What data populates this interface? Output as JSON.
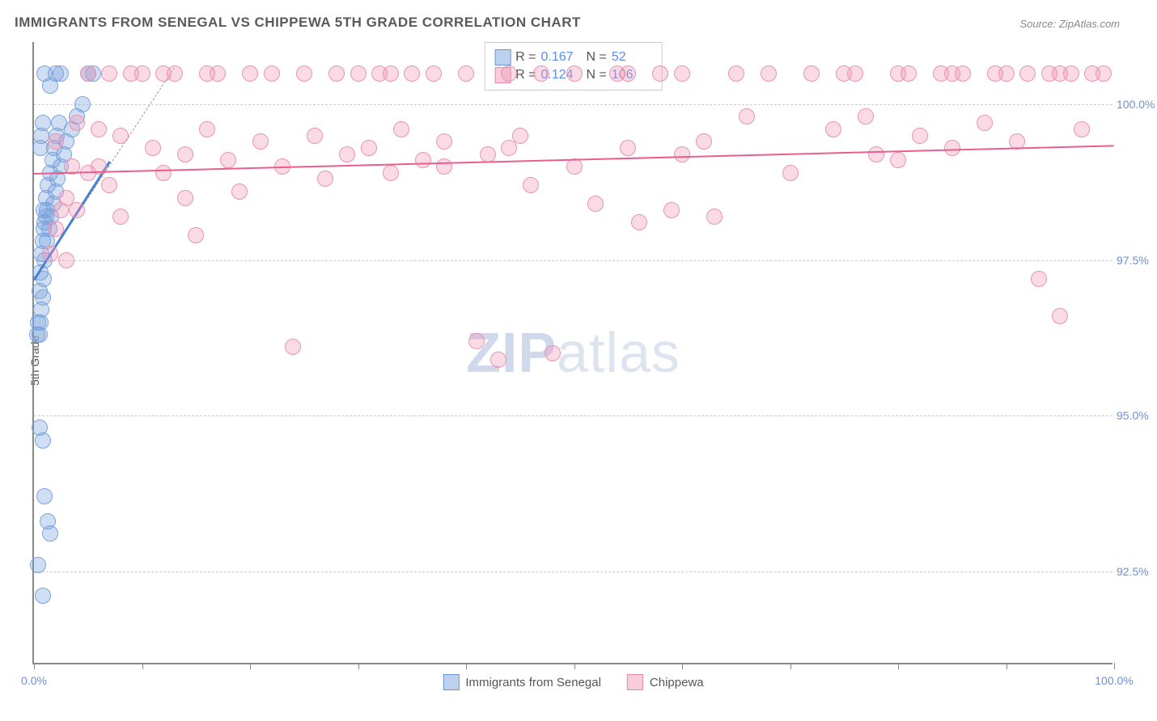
{
  "title": "IMMIGRANTS FROM SENEGAL VS CHIPPEWA 5TH GRADE CORRELATION CHART",
  "source": "Source: ZipAtlas.com",
  "ylabel": "5th Grade",
  "watermark_zip": "ZIP",
  "watermark_atlas": "atlas",
  "chart": {
    "type": "scatter",
    "background_color": "#ffffff",
    "grid_color": "#cfcfcf",
    "xlim": [
      0,
      100
    ],
    "ylim": [
      91,
      101
    ],
    "yticks": [
      92.5,
      95.0,
      97.5,
      100.0
    ],
    "ytick_labels": [
      "92.5%",
      "95.0%",
      "97.5%",
      "100.0%"
    ],
    "xtick_positions": [
      0,
      10,
      20,
      30,
      40,
      50,
      60,
      70,
      80,
      90,
      100
    ],
    "xtick_labels": {
      "0": "0.0%",
      "100": "100.0%"
    },
    "marker_radius": 10,
    "series": [
      {
        "name": "Immigrants from Senegal",
        "fill": "rgba(120,160,220,0.35)",
        "stroke": "#7aa4dd",
        "swatch_fill": "#bdd0ee",
        "swatch_border": "#6c95d6",
        "R": "0.167",
        "N": "52",
        "trend": {
          "x1": 0,
          "y1": 97.2,
          "x2": 7,
          "y2": 99.1,
          "color": "#4a7fd1",
          "width": 3
        },
        "points": [
          [
            0.3,
            96.3
          ],
          [
            0.4,
            96.5
          ],
          [
            0.5,
            97.0
          ],
          [
            0.6,
            97.3
          ],
          [
            0.7,
            97.6
          ],
          [
            0.8,
            97.8
          ],
          [
            0.9,
            98.0
          ],
          [
            1.0,
            98.1
          ],
          [
            1.1,
            98.2
          ],
          [
            1.2,
            98.3
          ],
          [
            0.5,
            96.3
          ],
          [
            0.6,
            96.5
          ],
          [
            0.7,
            96.7
          ],
          [
            0.8,
            96.9
          ],
          [
            0.9,
            97.2
          ],
          [
            1.0,
            97.5
          ],
          [
            1.2,
            97.8
          ],
          [
            1.4,
            98.0
          ],
          [
            1.6,
            98.2
          ],
          [
            1.8,
            98.4
          ],
          [
            2.0,
            98.6
          ],
          [
            2.2,
            98.8
          ],
          [
            2.5,
            99.0
          ],
          [
            2.8,
            99.2
          ],
          [
            3.0,
            99.4
          ],
          [
            3.5,
            99.6
          ],
          [
            4.0,
            99.8
          ],
          [
            4.5,
            100.0
          ],
          [
            5.0,
            100.5
          ],
          [
            5.5,
            100.5
          ],
          [
            0.5,
            94.8
          ],
          [
            0.8,
            94.6
          ],
          [
            1.0,
            93.7
          ],
          [
            1.3,
            93.3
          ],
          [
            1.5,
            93.1
          ],
          [
            0.4,
            92.6
          ],
          [
            0.8,
            92.1
          ],
          [
            2.0,
            100.5
          ],
          [
            2.5,
            100.5
          ],
          [
            1.0,
            100.5
          ],
          [
            1.5,
            100.3
          ],
          [
            0.6,
            99.3
          ],
          [
            0.7,
            99.5
          ],
          [
            0.8,
            99.7
          ],
          [
            0.9,
            98.3
          ],
          [
            1.1,
            98.5
          ],
          [
            1.3,
            98.7
          ],
          [
            1.5,
            98.9
          ],
          [
            1.7,
            99.1
          ],
          [
            1.9,
            99.3
          ],
          [
            2.1,
            99.5
          ],
          [
            2.3,
            99.7
          ]
        ]
      },
      {
        "name": "Chippewa",
        "fill": "rgba(240,150,180,0.35)",
        "stroke": "#e994b1",
        "swatch_fill": "#f6cdd9",
        "swatch_border": "#e58aa8",
        "R": "0.124",
        "N": "106",
        "trend": {
          "x1": 0,
          "y1": 98.9,
          "x2": 100,
          "y2": 99.35,
          "color": "#e85f8f",
          "width": 2
        },
        "points": [
          [
            2,
            98.0
          ],
          [
            3,
            98.5
          ],
          [
            4,
            99.7
          ],
          [
            5,
            100.5
          ],
          [
            6,
            99.0
          ],
          [
            7,
            98.7
          ],
          [
            8,
            99.5
          ],
          [
            9,
            100.5
          ],
          [
            10,
            100.5
          ],
          [
            11,
            99.3
          ],
          [
            12,
            98.9
          ],
          [
            13,
            100.5
          ],
          [
            14,
            99.2
          ],
          [
            15,
            97.9
          ],
          [
            16,
            99.6
          ],
          [
            17,
            100.5
          ],
          [
            18,
            99.1
          ],
          [
            19,
            98.6
          ],
          [
            20,
            100.5
          ],
          [
            21,
            99.4
          ],
          [
            22,
            100.5
          ],
          [
            23,
            99.0
          ],
          [
            24,
            96.1
          ],
          [
            25,
            100.5
          ],
          [
            26,
            99.5
          ],
          [
            27,
            98.8
          ],
          [
            28,
            100.5
          ],
          [
            29,
            99.2
          ],
          [
            30,
            100.5
          ],
          [
            31,
            99.3
          ],
          [
            32,
            100.5
          ],
          [
            33,
            98.9
          ],
          [
            34,
            99.6
          ],
          [
            35,
            100.5
          ],
          [
            36,
            99.1
          ],
          [
            37,
            100.5
          ],
          [
            38,
            99.4
          ],
          [
            40,
            100.5
          ],
          [
            41,
            96.2
          ],
          [
            42,
            99.2
          ],
          [
            43,
            95.9
          ],
          [
            44,
            100.5
          ],
          [
            45,
            99.5
          ],
          [
            46,
            98.7
          ],
          [
            47,
            100.5
          ],
          [
            48,
            96.0
          ],
          [
            50,
            100.5
          ],
          [
            52,
            98.4
          ],
          [
            54,
            100.5
          ],
          [
            55,
            99.3
          ],
          [
            56,
            98.1
          ],
          [
            58,
            100.5
          ],
          [
            59,
            98.3
          ],
          [
            60,
            100.5
          ],
          [
            62,
            99.4
          ],
          [
            63,
            98.2
          ],
          [
            65,
            100.5
          ],
          [
            66,
            99.8
          ],
          [
            68,
            100.5
          ],
          [
            70,
            98.9
          ],
          [
            72,
            100.5
          ],
          [
            74,
            99.6
          ],
          [
            76,
            100.5
          ],
          [
            77,
            99.8
          ],
          [
            78,
            99.2
          ],
          [
            80,
            100.5
          ],
          [
            81,
            100.5
          ],
          [
            82,
            99.5
          ],
          [
            84,
            100.5
          ],
          [
            85,
            99.3
          ],
          [
            86,
            100.5
          ],
          [
            88,
            99.7
          ],
          [
            89,
            100.5
          ],
          [
            90,
            100.5
          ],
          [
            91,
            99.4
          ],
          [
            92,
            100.5
          ],
          [
            93,
            97.2
          ],
          [
            94,
            100.5
          ],
          [
            95,
            96.6
          ],
          [
            96,
            100.5
          ],
          [
            97,
            99.6
          ],
          [
            98,
            100.5
          ],
          [
            99,
            100.5
          ],
          [
            3,
            97.5
          ],
          [
            4,
            98.3
          ],
          [
            5,
            98.9
          ],
          [
            6,
            99.6
          ],
          [
            7,
            100.5
          ],
          [
            8,
            98.2
          ],
          [
            2.5,
            98.3
          ],
          [
            3.5,
            99.0
          ],
          [
            1.5,
            97.6
          ],
          [
            2,
            99.4
          ],
          [
            12,
            100.5
          ],
          [
            14,
            98.5
          ],
          [
            16,
            100.5
          ],
          [
            33,
            100.5
          ],
          [
            38,
            99.0
          ],
          [
            44,
            99.3
          ],
          [
            50,
            99.0
          ],
          [
            55,
            100.5
          ],
          [
            60,
            99.2
          ],
          [
            75,
            100.5
          ],
          [
            80,
            99.1
          ],
          [
            85,
            100.5
          ],
          [
            95,
            100.5
          ]
        ]
      }
    ]
  },
  "legend_top": {
    "r_label": "R =",
    "n_label": "N ="
  },
  "legend_bottom": {
    "series1": "Immigrants from Senegal",
    "series2": "Chippewa"
  }
}
